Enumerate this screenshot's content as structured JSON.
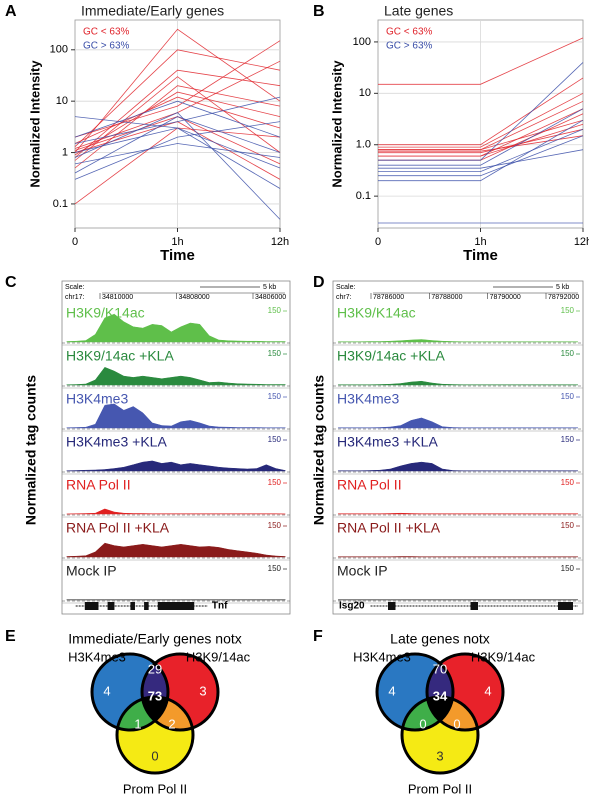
{
  "figure": {
    "panel_labels": [
      "A",
      "B",
      "C",
      "D",
      "E",
      "F"
    ]
  },
  "chart_data": [
    {
      "type": "line",
      "title": "Immediate/Early genes",
      "x_label": "Time",
      "y_label": "Normalized Intensity",
      "categories": [
        "0",
        "1h",
        "12h"
      ],
      "log": true,
      "grid": true,
      "ylim": [
        0.034,
        380
      ],
      "yticks": [
        0.1,
        1,
        10,
        100
      ],
      "series": [
        {
          "name": "GC < 63%",
          "color": "#e0242c",
          "lines": [
            [
              1,
              250,
              10
            ],
            [
              0.8,
              40,
              20
            ],
            [
              1.5,
              12,
              3
            ],
            [
              1.2,
              6,
              60
            ],
            [
              0.7,
              30,
              1
            ],
            [
              2,
              8,
              150
            ],
            [
              1,
              4,
              0.3
            ],
            [
              0.1,
              3,
              2
            ],
            [
              1.3,
              100,
              40
            ],
            [
              0.5,
              20,
              8
            ],
            [
              1.1,
              5,
              0.6
            ],
            [
              0.9,
              15,
              5
            ]
          ]
        },
        {
          "name": "GC > 63%",
          "color": "#3a4ea8",
          "lines": [
            [
              0.4,
              5,
              1
            ],
            [
              1,
              3,
              0.2
            ],
            [
              2,
              10,
              2
            ],
            [
              0.3,
              2,
              4
            ],
            [
              5,
              3,
              0.5
            ],
            [
              0.8,
              6,
              0.05
            ],
            [
              1.5,
              4,
              12
            ],
            [
              0.6,
              1.5,
              0.8
            ]
          ]
        }
      ]
    },
    {
      "type": "line",
      "title": "Late genes",
      "x_label": "Time",
      "y_label": "Normalized Intensity",
      "categories": [
        "0",
        "1h",
        "12h"
      ],
      "log": true,
      "grid": true,
      "ylim": [
        0.024,
        267
      ],
      "yticks": [
        0.1,
        {
          "value": 1,
          "label": "1.0"
        },
        10,
        100
      ],
      "series": [
        {
          "name": "GC < 63%",
          "color": "#e0242c",
          "lines": [
            [
              0.8,
              0.8,
              3
            ],
            [
              0.6,
              0.6,
              5
            ],
            [
              0.9,
              0.9,
              10
            ],
            [
              0.7,
              0.7,
              2
            ],
            [
              15,
              15,
              120
            ],
            [
              0.5,
              0.5,
              4
            ],
            [
              1,
              1,
              20
            ],
            [
              0.6,
              0.6,
              2.5
            ],
            [
              0.8,
              0.8,
              7
            ],
            [
              0.75,
              0.75,
              1.5
            ]
          ]
        },
        {
          "name": "GC > 63%",
          "color": "#3a4ea8",
          "lines": [
            [
              0.3,
              0.3,
              2
            ],
            [
              0.4,
              0.4,
              5
            ],
            [
              0.25,
              0.25,
              1.5
            ],
            [
              0.5,
              0.5,
              40
            ],
            [
              0.2,
              0.2,
              3
            ],
            [
              0.03,
              0.03,
              0.03
            ],
            [
              0.35,
              0.35,
              0.8
            ]
          ]
        }
      ]
    },
    {
      "type": "tracks",
      "y_label": "Normalized tag counts",
      "scale_label": "Scale:",
      "scale_size": "5 kb",
      "chrom": "chr17:",
      "coordinates": [
        34810000,
        34808000,
        34806000
      ],
      "gene": "Tnf",
      "ylim": [
        0,
        150
      ],
      "yticks": [
        150
      ],
      "tracks": [
        {
          "name": "H3K9/K14ac",
          "color": "#5fbf4a",
          "values": [
            2,
            3,
            6,
            30,
            95,
            110,
            80,
            60,
            55,
            70,
            65,
            40,
            60,
            75,
            70,
            25,
            8,
            5,
            4,
            3,
            3,
            2,
            2,
            2
          ]
        },
        {
          "name": "H3K9/14ac +KLA",
          "color": "#2a8a3e",
          "values": [
            1,
            2,
            4,
            20,
            70,
            55,
            35,
            30,
            35,
            30,
            25,
            30,
            35,
            30,
            20,
            10,
            12,
            8,
            5,
            4,
            3,
            2,
            2,
            2
          ]
        },
        {
          "name": "H3K4me3",
          "color": "#4657b0",
          "values": [
            1,
            2,
            3,
            15,
            90,
            95,
            70,
            85,
            60,
            20,
            10,
            8,
            25,
            30,
            20,
            8,
            4,
            3,
            2,
            2,
            2,
            1,
            1,
            1
          ]
        },
        {
          "name": "H3K4me3 +KLA",
          "color": "#27297a",
          "values": [
            1,
            2,
            3,
            4,
            6,
            10,
            15,
            25,
            35,
            40,
            30,
            35,
            25,
            30,
            25,
            20,
            15,
            12,
            10,
            8,
            10,
            25,
            10,
            2
          ]
        },
        {
          "name": "RNA Pol II",
          "color": "#e02020",
          "values": [
            0,
            1,
            2,
            3,
            20,
            8,
            3,
            2,
            2,
            1,
            1,
            1,
            1,
            1,
            1,
            1,
            1,
            1,
            1,
            1,
            1,
            1,
            1,
            0
          ]
        },
        {
          "name": "RNA Pol II +KLA",
          "color": "#8a1a1a",
          "values": [
            2,
            3,
            5,
            20,
            55,
            45,
            40,
            45,
            50,
            45,
            40,
            45,
            50,
            45,
            40,
            42,
            38,
            30,
            25,
            20,
            15,
            8,
            4,
            2
          ]
        },
        {
          "name": "Mock IP",
          "color": "#222222",
          "values": [
            1,
            1,
            1,
            1,
            1,
            1,
            1,
            1,
            1,
            1,
            1,
            1,
            1,
            1,
            1,
            1,
            1,
            1,
            1,
            1,
            1,
            1,
            1,
            1
          ]
        }
      ]
    },
    {
      "type": "tracks",
      "y_label": "Normalized tag counts",
      "scale_label": "Scale:",
      "scale_size": "5 kb",
      "chrom": "chr7:",
      "coordinates": [
        78786000,
        78788000,
        78790000,
        78792000
      ],
      "gene": "Isg20",
      "ylim": [
        0,
        150
      ],
      "yticks": [
        150
      ],
      "tracks": [
        {
          "name": "H3K9/K14ac",
          "color": "#5fbf4a",
          "values": [
            1,
            1,
            1,
            2,
            2,
            3,
            5,
            8,
            10,
            6,
            3,
            2,
            1,
            1,
            1,
            1,
            1,
            1,
            1,
            1,
            1,
            1,
            1,
            1
          ]
        },
        {
          "name": "H3K9/14ac +KLA",
          "color": "#2a8a3e",
          "values": [
            1,
            1,
            1,
            1,
            2,
            3,
            6,
            12,
            15,
            8,
            3,
            2,
            1,
            1,
            1,
            1,
            1,
            1,
            1,
            1,
            1,
            1,
            1,
            1
          ]
        },
        {
          "name": "H3K4me3",
          "color": "#4657b0",
          "values": [
            1,
            1,
            1,
            1,
            2,
            4,
            10,
            30,
            40,
            25,
            5,
            2,
            1,
            1,
            1,
            1,
            1,
            1,
            1,
            1,
            1,
            1,
            1,
            1
          ]
        },
        {
          "name": "H3K4me3 +KLA",
          "color": "#27297a",
          "values": [
            1,
            1,
            1,
            2,
            3,
            8,
            20,
            30,
            35,
            30,
            8,
            2,
            1,
            1,
            1,
            1,
            1,
            1,
            1,
            1,
            1,
            1,
            1,
            1
          ]
        },
        {
          "name": "RNA Pol II",
          "color": "#e02020",
          "values": [
            1,
            1,
            1,
            1,
            1,
            2,
            3,
            2,
            1,
            1,
            1,
            1,
            1,
            1,
            1,
            1,
            1,
            1,
            1,
            1,
            1,
            1,
            1,
            1
          ]
        },
        {
          "name": "RNA Pol II +KLA",
          "color": "#8a1a1a",
          "values": [
            1,
            1,
            1,
            1,
            1,
            1,
            2,
            2,
            1,
            1,
            1,
            1,
            1,
            1,
            1,
            1,
            1,
            1,
            1,
            1,
            1,
            1,
            1,
            1
          ]
        },
        {
          "name": "Mock IP",
          "color": "#222222",
          "values": [
            1,
            1,
            1,
            1,
            1,
            1,
            1,
            1,
            1,
            1,
            1,
            1,
            1,
            1,
            1,
            1,
            1,
            1,
            1,
            1,
            1,
            1,
            1,
            1
          ]
        }
      ]
    },
    {
      "type": "venn",
      "title": "Immediate/Early genes notx",
      "sets": [
        {
          "name": "H3K4me3",
          "color": "#2a78c2"
        },
        {
          "name": "H3K9/14ac",
          "color": "#e8222a"
        },
        {
          "name": "Prom Pol II",
          "color": "#f5ea14"
        }
      ],
      "values": [
        4,
        29,
        3,
        73,
        1,
        2,
        0
      ]
    },
    {
      "type": "venn",
      "title": "Late genes notx",
      "sets": [
        {
          "name": "H3K4me3",
          "color": "#2a78c2"
        },
        {
          "name": "H3K9/14ac",
          "color": "#e8222a"
        },
        {
          "name": "Prom Pol II",
          "color": "#f5ea14"
        }
      ],
      "values": [
        4,
        70,
        4,
        34,
        0,
        0,
        3
      ]
    }
  ]
}
